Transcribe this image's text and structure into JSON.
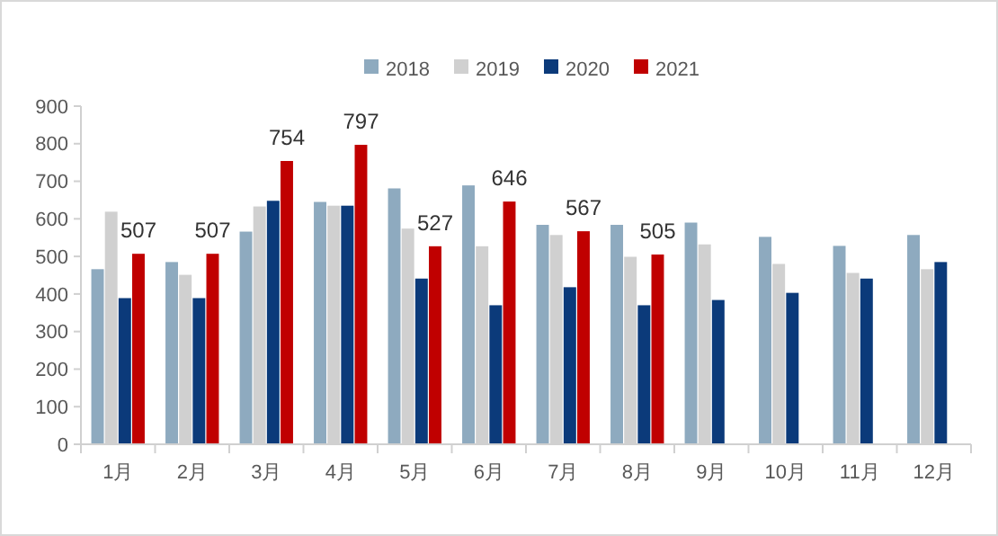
{
  "chart_data": {
    "type": "bar",
    "categories": [
      "1月",
      "2月",
      "3月",
      "4月",
      "5月",
      "6月",
      "7月",
      "8月",
      "9月",
      "10月",
      "11月",
      "12月"
    ],
    "series": [
      {
        "name": "2018",
        "color": "#8eaabf",
        "values": [
          466,
          485,
          566,
          645,
          681,
          689,
          584,
          584,
          590,
          552,
          528,
          557
        ]
      },
      {
        "name": "2019",
        "color": "#d0d0d0",
        "values": [
          619,
          451,
          633,
          635,
          574,
          527,
          557,
          499,
          532,
          480,
          456,
          466
        ]
      },
      {
        "name": "2020",
        "color": "#0b3a7a",
        "values": [
          389,
          389,
          648,
          635,
          441,
          370,
          418,
          370,
          384,
          403,
          441,
          485
        ]
      },
      {
        "name": "2021",
        "color": "#c00000",
        "values": [
          507,
          507,
          754,
          797,
          527,
          646,
          567,
          505,
          null,
          null,
          null,
          null
        ],
        "value_labels": [
          "507",
          "507",
          "754",
          "797",
          "527",
          "646",
          "567",
          "505",
          null,
          null,
          null,
          null
        ]
      }
    ],
    "ylim": [
      0,
      900
    ],
    "yticks": [
      0,
      100,
      200,
      300,
      400,
      500,
      600,
      700,
      800,
      900
    ],
    "grid": false,
    "legend": "top"
  }
}
